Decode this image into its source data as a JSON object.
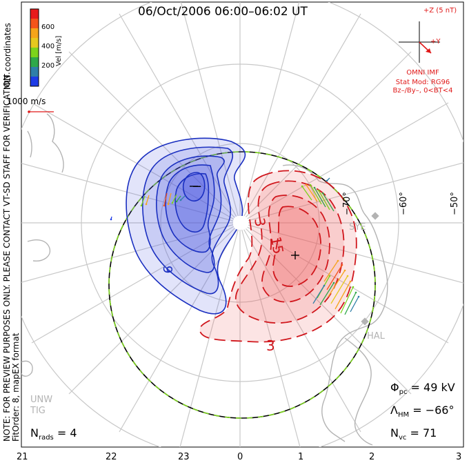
{
  "title": "06/Oct/2006 06:00–06:02 UT",
  "side_note": {
    "line1": "NOTE: FOR PREVIEW PURPOSES ONLY. PLEASE CONTACT VT-SD STAFF FOR VERIFICATION.",
    "line2": "FitOrder: 8, mapEX format"
  },
  "coordinates_label": "MLT coordinates",
  "colorbar": {
    "label": "Vel [m/s]",
    "ticks": [
      "600",
      "400",
      "200"
    ],
    "colors": [
      "#e81c1c",
      "#f4541a",
      "#f5a41a",
      "#e6c81e",
      "#7cd31c",
      "#2fa84a",
      "#2f7fa8",
      "#1e3ce6"
    ]
  },
  "vector_scale": {
    "label": "1000 m/s",
    "color": "#e01818"
  },
  "imf": {
    "z_label": "+Z (5 nT)",
    "y_label": "+Y",
    "source": "OMNI IMF",
    "model_line1": "Stat Mod: RG96",
    "model_line2": "Bz–/By–, 0<BT<4",
    "color": "#e01818"
  },
  "stats": {
    "phi_pc": "= 49 kV",
    "lambda_hm": "= −66°",
    "n_vc": "= 71",
    "n_rads": "= 4"
  },
  "mlt_ticks": [
    "21",
    "22",
    "23",
    "0",
    "1",
    "2",
    "3"
  ],
  "lat_labels": [
    "−70°",
    "−60°",
    "−50°"
  ],
  "stations": [
    "SYE",
    "HAL",
    "UNW",
    "TIG"
  ],
  "contour_labels": {
    "negative": [
      "−",
      "9"
    ],
    "positive": [
      "3",
      "15",
      "3"
    ]
  },
  "colors": {
    "negative_fill": "#4a55e0",
    "negative_line": "#1a2fc0",
    "positive_fill": "#ee5a5a",
    "positive_line": "#d0161c",
    "grid": "#c8c8c8",
    "coast": "#b3b3b3",
    "boundary_a": "#000000",
    "boundary_b": "#7cd31c"
  }
}
